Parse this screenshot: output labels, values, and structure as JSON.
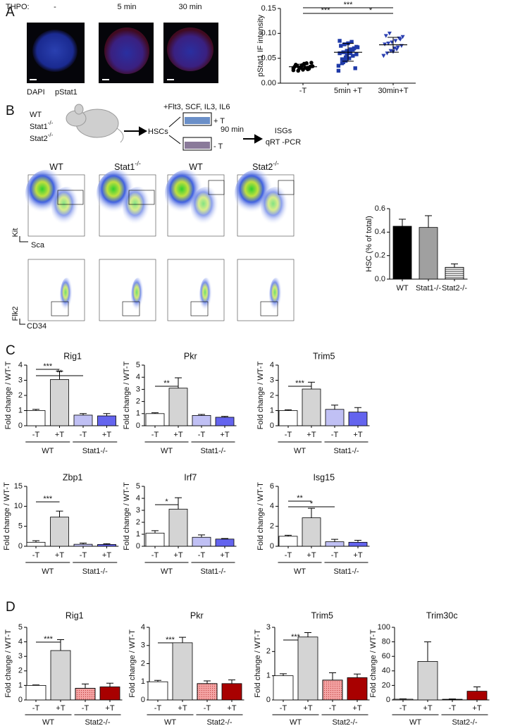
{
  "panel_labels": [
    "A",
    "B",
    "C",
    "D"
  ],
  "panel_a": {
    "thpo": "THPO:",
    "conditions": [
      "-",
      "5 min",
      "30 min"
    ],
    "stains": [
      {
        "text": "DAPI",
        "color": "#3a80d0"
      },
      {
        "text": "pStat1",
        "color": "#e02020"
      }
    ]
  },
  "diagram": {
    "genotypes": [
      "WT",
      "Stat1",
      "Stat2"
    ],
    "ko": "-/-",
    "cytokines": "+Flt3,  SCF,  IL3,  IL6",
    "hscs": "HSCs",
    "plus_t": "+ T",
    "minus_t": "- T",
    "time": "90 min",
    "readout": [
      "ISGs",
      "qRT -PCR"
    ]
  },
  "flow": {
    "titles": [
      {
        "text": "WT"
      },
      {
        "text": "Stat1",
        "sup": "-/-"
      },
      {
        "text": "WT"
      },
      {
        "text": "Stat2",
        "sup": "-/-"
      }
    ],
    "axis_labels": [
      "Kit",
      "Sca",
      "Flk2",
      "CD34"
    ]
  },
  "chart_data": [
    {
      "type": "scatter",
      "ylabel": "pStat1 IF intensity",
      "categories": [
        "-T",
        "5min +T",
        "30min+T"
      ],
      "points": [
        [
          0.03,
          0.035,
          0.032,
          0.038,
          0.028,
          0.041,
          0.033,
          0.025,
          0.036,
          0.031,
          0.029,
          0.034,
          0.037,
          0.03,
          0.027,
          0.04,
          0.033,
          0.026,
          0.035,
          0.032,
          0.039,
          0.031
        ],
        [
          0.035,
          0.04,
          0.045,
          0.05,
          0.055,
          0.058,
          0.06,
          0.062,
          0.065,
          0.068,
          0.07,
          0.072,
          0.075,
          0.078,
          0.08,
          0.083,
          0.03,
          0.025,
          0.048,
          0.052,
          0.063,
          0.067,
          0.073,
          0.085,
          0.042,
          0.057,
          0.06,
          0.07
        ],
        [
          0.055,
          0.06,
          0.065,
          0.07,
          0.072,
          0.075,
          0.078,
          0.08,
          0.082,
          0.085,
          0.09,
          0.093,
          0.095,
          0.1,
          0.063,
          0.068,
          0.088,
          0.055
        ]
      ],
      "means": [
        0.033,
        0.062,
        0.077
      ],
      "sd": [
        0.005,
        0.018,
        0.015
      ],
      "colors": [
        "#000000",
        "#1f3aa8",
        "#2b3fb0"
      ],
      "markers": [
        "circle",
        "square",
        "triangle"
      ],
      "ylim": [
        0,
        0.15
      ],
      "yticks": [
        {
          "value": 0,
          "label": "0.00"
        },
        {
          "value": 0.05,
          "label": "0.05"
        },
        {
          "value": 0.1,
          "label": "0.10"
        },
        {
          "value": 0.15,
          "label": "0.15"
        }
      ],
      "annotations": [
        "***",
        "***",
        "*"
      ]
    },
    {
      "type": "bar",
      "ylabel": "HSC (% of total)",
      "categories": [
        "WT",
        "Stat1-/-",
        "Stat2-/-"
      ],
      "values": [
        0.45,
        0.44,
        0.1
      ],
      "errors": [
        0.06,
        0.1,
        0.03
      ],
      "colors": [
        "#000000",
        "#a0a0a0",
        "#ffffff"
      ],
      "patterns": [
        "none",
        "none",
        "stripes"
      ],
      "ylim": [
        0,
        0.6
      ],
      "yticks": [
        {
          "value": 0,
          "label": "0.0"
        },
        {
          "value": 0.2,
          "label": "0.2"
        },
        {
          "value": 0.4,
          "label": "0.4"
        },
        {
          "value": 0.6,
          "label": "0.6"
        }
      ]
    },
    {
      "type": "bar",
      "title": "Rig1",
      "ylabel": "Fold change / WT-T",
      "categories": [
        "-T",
        "+T",
        "-T",
        "+T"
      ],
      "groups": [
        "WT",
        "Stat1-/-"
      ],
      "values": [
        1,
        3.05,
        0.7,
        0.65
      ],
      "errors": [
        0.08,
        0.55,
        0.1,
        0.15
      ],
      "colors": [
        "#ffffff",
        "#d4d4d4",
        "#c0c0f4",
        "#6464ee"
      ],
      "patterns": [
        "none",
        "none",
        "none",
        "none"
      ],
      "ylim": [
        0,
        4
      ],
      "yticks": [
        0,
        1,
        2,
        3,
        4
      ],
      "annotations": [
        "***",
        "**"
      ]
    },
    {
      "type": "bar",
      "title": "Pkr",
      "ylabel": "Fold change / WT-T",
      "categories": [
        "-T",
        "+T",
        "-T",
        "+T"
      ],
      "groups": [
        "WT",
        "Stat1-/-"
      ],
      "values": [
        1,
        3.1,
        0.85,
        0.7
      ],
      "errors": [
        0.07,
        0.85,
        0.08,
        0.07
      ],
      "colors": [
        "#ffffff",
        "#d4d4d4",
        "#c0c0f4",
        "#6464ee"
      ],
      "patterns": [
        "none",
        "none",
        "none",
        "none"
      ],
      "ylim": [
        0,
        5
      ],
      "yticks": [
        0,
        1,
        2,
        3,
        4,
        5
      ],
      "annotations": [
        "**"
      ]
    },
    {
      "type": "bar",
      "title": "Trim5",
      "ylabel": "Fold change / WT-T",
      "categories": [
        "-T",
        "+T",
        "-T",
        "+T"
      ],
      "groups": [
        "WT",
        "Stat1-/-"
      ],
      "values": [
        1,
        2.42,
        1.08,
        0.9
      ],
      "errors": [
        0.05,
        0.45,
        0.28,
        0.3
      ],
      "colors": [
        "#ffffff",
        "#d4d4d4",
        "#c0c0f4",
        "#6464ee"
      ],
      "patterns": [
        "none",
        "none",
        "none",
        "none"
      ],
      "ylim": [
        0,
        4
      ],
      "yticks": [
        0,
        1,
        2,
        3,
        4
      ],
      "annotations": [
        "***"
      ]
    },
    {
      "type": "bar",
      "title": "Zbp1",
      "ylabel": "Fold change / WT-T",
      "categories": [
        "-T",
        "+T",
        "-T",
        "+T"
      ],
      "groups": [
        "WT",
        "Stat1-/-"
      ],
      "values": [
        1,
        7.3,
        0.5,
        0.45
      ],
      "errors": [
        0.4,
        1.5,
        0.3,
        0.2
      ],
      "colors": [
        "#ffffff",
        "#d4d4d4",
        "#c0c0f4",
        "#6464ee"
      ],
      "patterns": [
        "none",
        "none",
        "none",
        "none"
      ],
      "ylim": [
        0,
        15
      ],
      "yticks": [
        0,
        5,
        10,
        15
      ],
      "annotations": [
        "***"
      ]
    },
    {
      "type": "bar",
      "title": "Irf7",
      "ylabel": "Fold change / WT-T",
      "categories": [
        "-T",
        "+T",
        "-T",
        "+T"
      ],
      "groups": [
        "WT",
        "Stat1-/-"
      ],
      "values": [
        1.1,
        3.1,
        0.75,
        0.6
      ],
      "errors": [
        0.2,
        0.95,
        0.2,
        0.05
      ],
      "colors": [
        "#ffffff",
        "#d4d4d4",
        "#c0c0f4",
        "#6464ee"
      ],
      "patterns": [
        "none",
        "none",
        "none",
        "none"
      ],
      "ylim": [
        0,
        5
      ],
      "yticks": [
        0,
        1,
        2,
        3,
        4,
        5
      ],
      "annotations": [
        "*"
      ]
    },
    {
      "type": "bar",
      "title": "Isg15",
      "ylabel": "Fold change / WT-T",
      "categories": [
        "-T",
        "+T",
        "-T",
        "+T"
      ],
      "groups": [
        "WT",
        "Stat1-/-"
      ],
      "values": [
        1,
        2.85,
        0.45,
        0.4
      ],
      "errors": [
        0.1,
        0.95,
        0.25,
        0.2
      ],
      "colors": [
        "#ffffff",
        "#d4d4d4",
        "#c0c0f4",
        "#6464ee"
      ],
      "patterns": [
        "none",
        "none",
        "none",
        "none"
      ],
      "ylim": [
        0,
        6
      ],
      "yticks": [
        0,
        2,
        4,
        6
      ],
      "annotations": [
        "**",
        "*"
      ]
    },
    {
      "type": "bar",
      "title": "Rig1",
      "ylabel": "Fold change / WT-T",
      "categories": [
        "-T",
        "+T",
        "-T",
        "+T"
      ],
      "groups": [
        "WT",
        "Stat2-/-"
      ],
      "values": [
        1,
        3.4,
        0.8,
        0.9
      ],
      "errors": [
        0.03,
        0.75,
        0.3,
        0.25
      ],
      "colors": [
        "#ffffff",
        "#d4d4d4",
        "#f4a4a4",
        "#a80000"
      ],
      "patterns": [
        "none",
        "none",
        "dots",
        "none"
      ],
      "ylim": [
        0,
        5
      ],
      "yticks": [
        0,
        1,
        2,
        3,
        4,
        5
      ],
      "annotations": [
        "***"
      ]
    },
    {
      "type": "bar",
      "title": "Pkr",
      "ylabel": "Fold change / WT-T",
      "categories": [
        "-T",
        "+T",
        "-T",
        "+T"
      ],
      "groups": [
        "WT",
        "Stat2-/-"
      ],
      "values": [
        1,
        3.15,
        0.9,
        0.9
      ],
      "errors": [
        0.08,
        0.3,
        0.15,
        0.2
      ],
      "colors": [
        "#ffffff",
        "#d4d4d4",
        "#f4a4a4",
        "#a80000"
      ],
      "patterns": [
        "none",
        "none",
        "dots",
        "none"
      ],
      "ylim": [
        0,
        4
      ],
      "yticks": [
        0,
        1,
        2,
        3,
        4
      ],
      "annotations": [
        "***"
      ]
    },
    {
      "type": "bar",
      "title": "Trim5",
      "ylabel": "Fold change / WT-T",
      "categories": [
        "-T",
        "+T",
        "-T",
        "+T"
      ],
      "groups": [
        "WT",
        "Stat2-/-"
      ],
      "values": [
        1,
        2.6,
        0.82,
        0.92
      ],
      "errors": [
        0.08,
        0.18,
        0.3,
        0.15
      ],
      "colors": [
        "#ffffff",
        "#d4d4d4",
        "#f4a4a4",
        "#a80000"
      ],
      "patterns": [
        "none",
        "none",
        "dots",
        "none"
      ],
      "ylim": [
        0,
        3
      ],
      "yticks": [
        0,
        1,
        2,
        3
      ],
      "annotations": [
        "***"
      ]
    },
    {
      "type": "bar",
      "title": "Trim30c",
      "ylabel": "Fold change / WT-T",
      "categories": [
        "-T",
        "+T",
        "-T",
        "+T"
      ],
      "groups": [
        "WT",
        "Stat2-/-"
      ],
      "values": [
        1,
        53,
        0.8,
        12
      ],
      "errors": [
        0.5,
        27,
        0.5,
        6
      ],
      "colors": [
        "#ffffff",
        "#d4d4d4",
        "#f4a4a4",
        "#a80000"
      ],
      "patterns": [
        "none",
        "none",
        "dots",
        "none"
      ],
      "ylim": [
        0,
        100
      ],
      "yticks": [
        0,
        20,
        40,
        60,
        80,
        100
      ]
    }
  ]
}
